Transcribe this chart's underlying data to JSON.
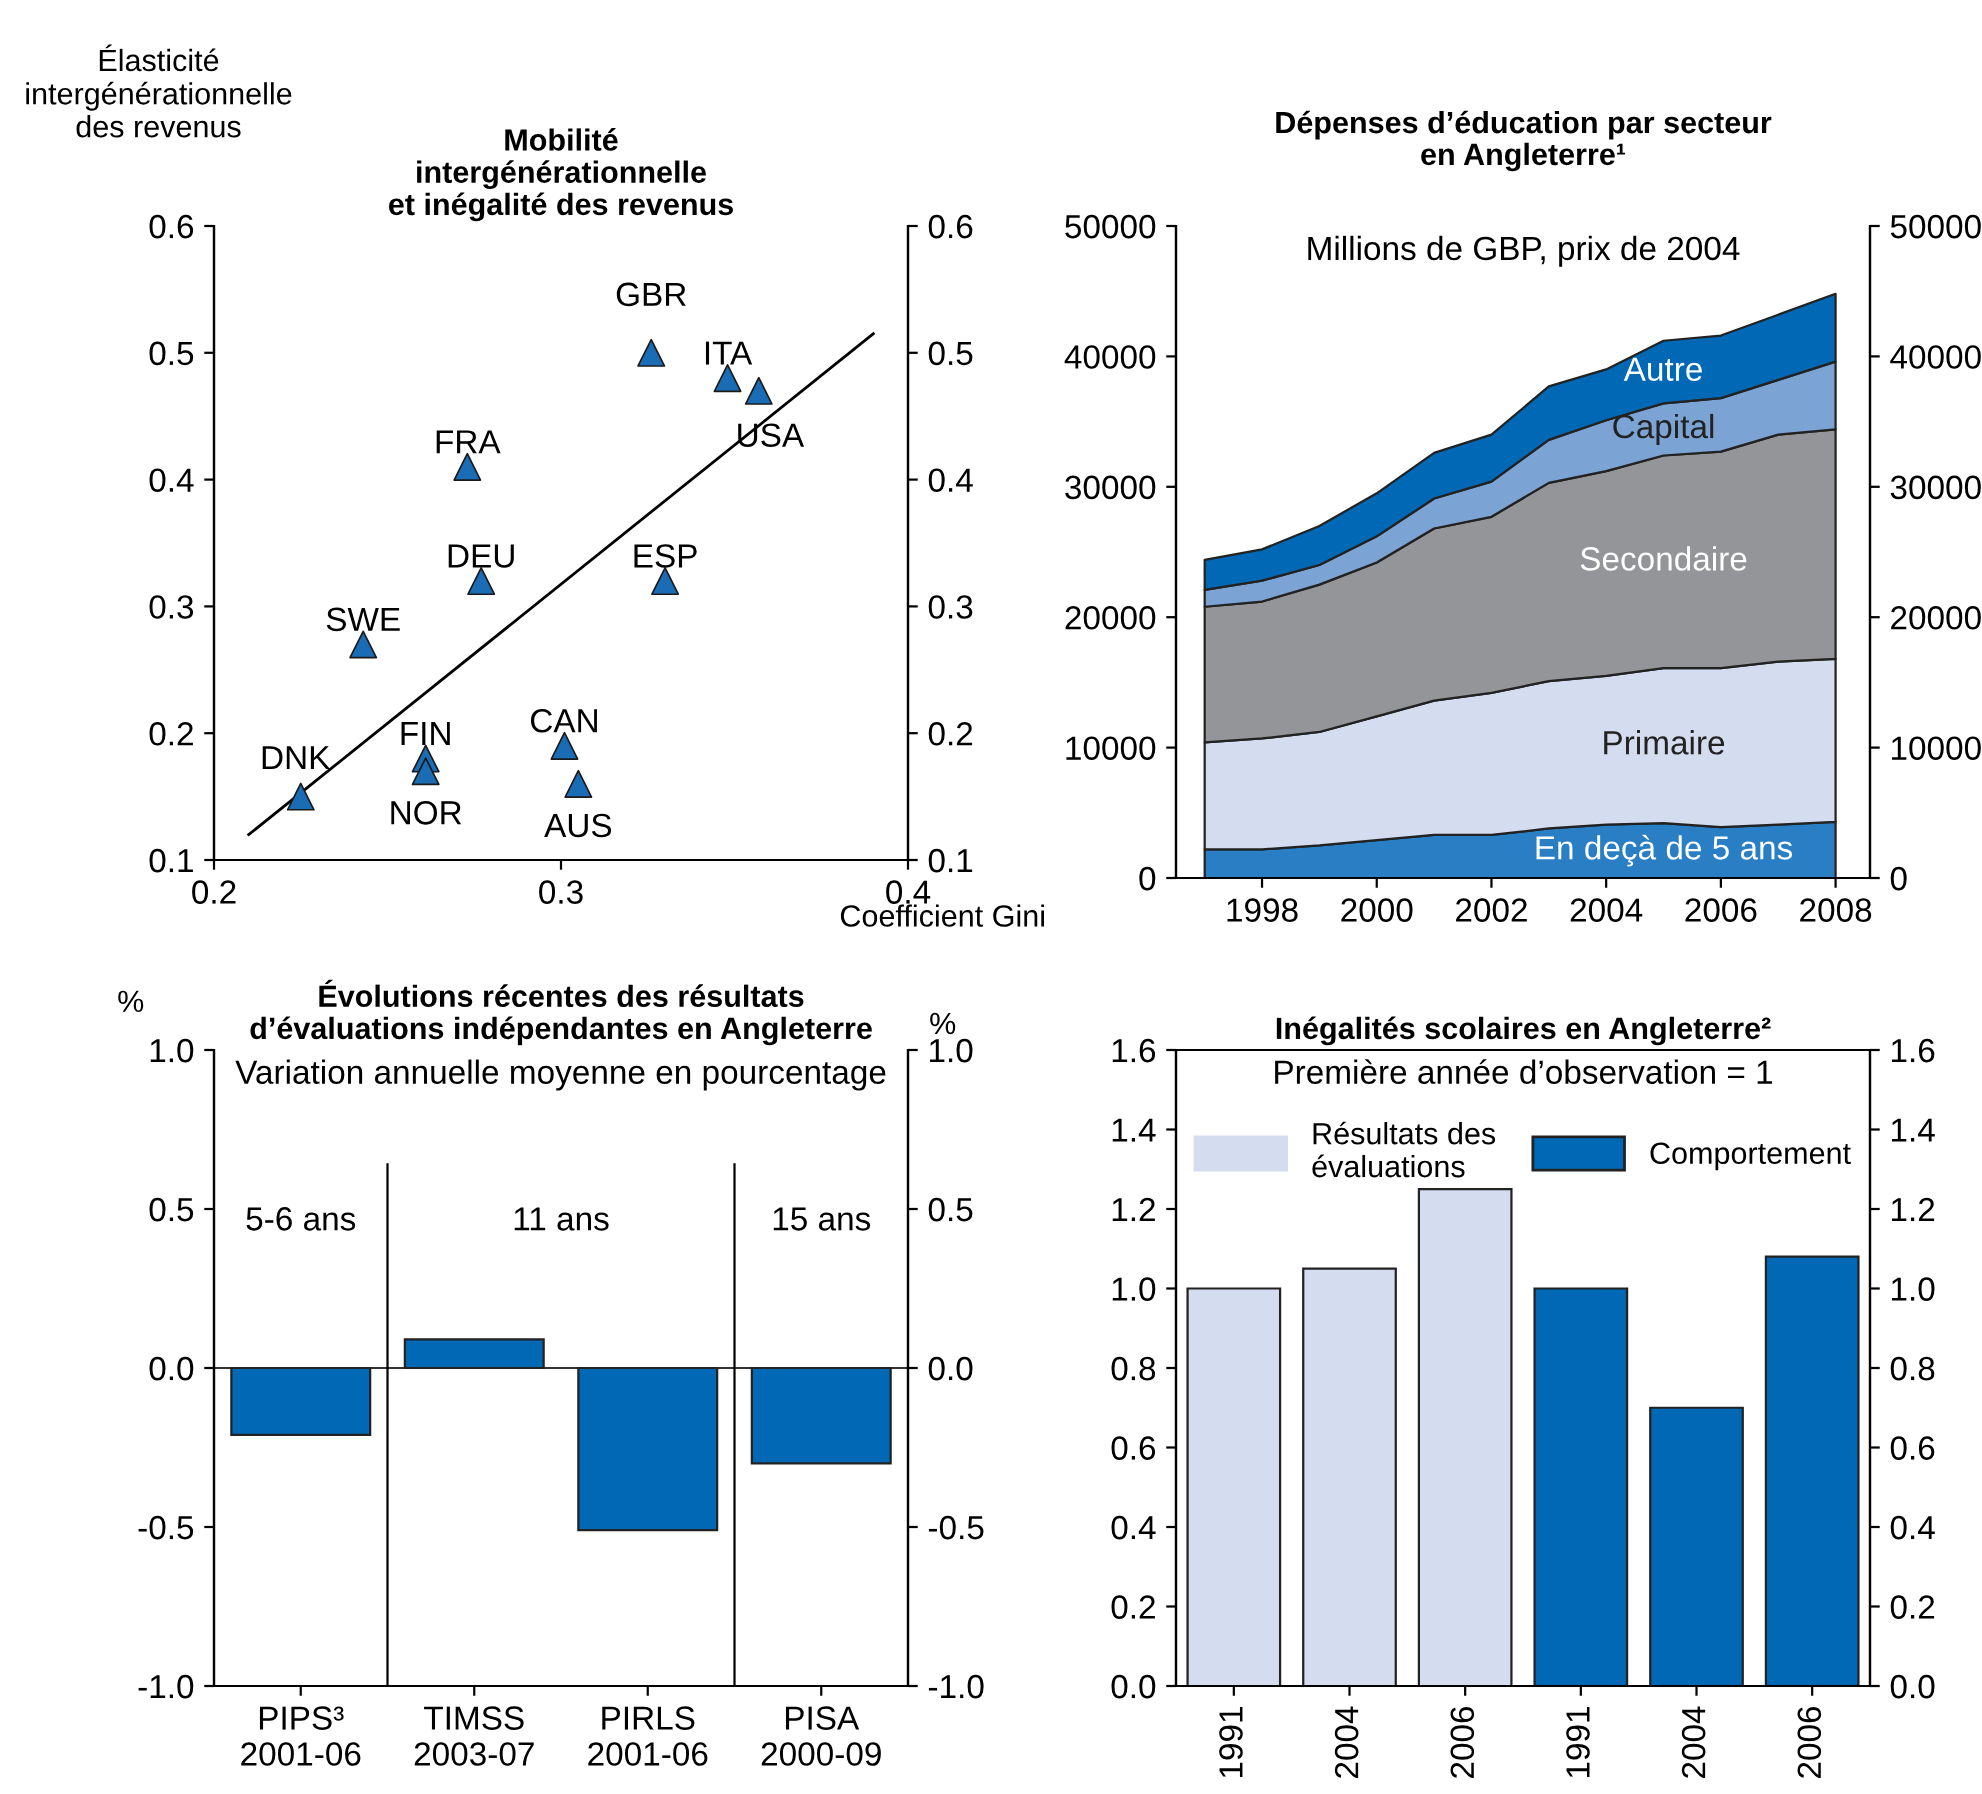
{
  "chart_data": [
    {
      "type": "scatter",
      "title": "Mobilité\nintergénérationnelle\net inégalité des revenus",
      "xlabel": "Coefficient Gini",
      "ylabel": "Élasticité\nintergénérationnelle\ndes revenus",
      "series": [
        {
          "type": "scatter",
          "marker": "triangle",
          "color": "#1a6db5",
          "x": [
            0.225,
            0.261,
            0.261,
            0.243,
            0.273,
            0.277,
            0.301,
            0.305,
            0.33,
            0.326,
            0.348,
            0.357
          ],
          "values": [
            0.15,
            0.18,
            0.17,
            0.27,
            0.41,
            0.32,
            0.19,
            0.16,
            0.32,
            0.5,
            0.48,
            0.47
          ]
        },
        {
          "type": "line",
          "color": "#000000",
          "x": [
            0.21,
            0.39
          ],
          "values": [
            0.12,
            0.515
          ]
        }
      ],
      "annotations": [
        {
          "text": "DNK",
          "x": 0.225,
          "y": 0.15
        },
        {
          "text": "FIN",
          "x": 0.261,
          "y": 0.18
        },
        {
          "text": "NOR",
          "x": 0.261,
          "y": 0.17
        },
        {
          "text": "SWE",
          "x": 0.243,
          "y": 0.27
        },
        {
          "text": "FRA",
          "x": 0.273,
          "y": 0.41
        },
        {
          "text": "DEU",
          "x": 0.277,
          "y": 0.32
        },
        {
          "text": "CAN",
          "x": 0.301,
          "y": 0.19
        },
        {
          "text": "AUS",
          "x": 0.305,
          "y": 0.16
        },
        {
          "text": "ESP",
          "x": 0.33,
          "y": 0.32
        },
        {
          "text": "GBR",
          "x": 0.326,
          "y": 0.5
        },
        {
          "text": "ITA",
          "x": 0.348,
          "y": 0.48
        },
        {
          "text": "USA",
          "x": 0.357,
          "y": 0.47
        }
      ],
      "xlim": [
        0.2,
        0.4
      ],
      "xticks": [
        0.2,
        0.3,
        0.4
      ],
      "ylim": [
        0.1,
        0.6
      ],
      "yticks": [
        0.1,
        0.2,
        0.3,
        0.4,
        0.5,
        0.6
      ],
      "y2lim": [
        0.1,
        0.6
      ],
      "y2ticks": [
        0.1,
        0.2,
        0.3,
        0.4,
        0.5,
        0.6
      ],
      "legend": false,
      "grid": false
    },
    {
      "type": "area",
      "stacked": true,
      "title": "Dépenses d’éducation par secteur\nen Angleterre¹",
      "subtitle": "Millions de GBP, prix de 2004",
      "x": [
        1997,
        1998,
        1999,
        2000,
        2001,
        2002,
        2003,
        2004,
        2005,
        2006,
        2007,
        2008
      ],
      "series": [
        {
          "name": "En deçà de 5 ans",
          "color": "#2a7fc4",
          "values": [
            2200,
            2200,
            2500,
            2900,
            3300,
            3300,
            3800,
            4100,
            4200,
            3900,
            4100,
            4300
          ]
        },
        {
          "name": "Primaire",
          "color": "#d4ddef",
          "values": [
            8200,
            8500,
            8700,
            9500,
            10300,
            10900,
            11300,
            11400,
            11900,
            12200,
            12500,
            12500
          ]
        },
        {
          "name": "Secondaire",
          "color": "#939598",
          "values": [
            10400,
            10500,
            11300,
            11800,
            13200,
            13500,
            15200,
            15700,
            16300,
            16600,
            17400,
            17600
          ]
        },
        {
          "name": "Capital",
          "color": "#7ba3d4",
          "values": [
            1300,
            1600,
            1500,
            2000,
            2300,
            2700,
            3300,
            3900,
            4000,
            4100,
            4200,
            5200
          ]
        },
        {
          "name": "Autre",
          "color": "#0068b4",
          "values": [
            2300,
            2400,
            3000,
            3300,
            3500,
            3600,
            4100,
            3900,
            4800,
            4800,
            5000,
            5200
          ]
        }
      ],
      "xlim": [
        1996.5,
        2008.6
      ],
      "xticks": [
        1998,
        2000,
        2002,
        2004,
        2006,
        2008
      ],
      "ylim": [
        0,
        50000
      ],
      "yticks": [
        0,
        10000,
        20000,
        30000,
        40000,
        50000
      ],
      "y2lim": [
        0,
        50000
      ],
      "y2ticks": [
        0,
        10000,
        20000,
        30000,
        40000,
        50000
      ],
      "legend": false,
      "grid": false
    },
    {
      "type": "bar",
      "title": "Évolutions récentes des résultats\nd’évaluations indépendantes en Angleterre",
      "subtitle": "Variation annuelle moyenne en pourcentage",
      "ylabel": "%",
      "y2label": "%",
      "categories": [
        "PIPS³\n2001-06",
        "TIMSS\n2003-07",
        "PIRLS\n2001-06",
        "PISA\n2000-09"
      ],
      "values": [
        -0.21,
        0.09,
        -0.51,
        -0.3
      ],
      "color": "#0068b4",
      "annotations": [
        "5-6 ans",
        "11 ans",
        "15 ans"
      ],
      "ylim": [
        -1.0,
        1.0
      ],
      "yticks": [
        {
          "value": -1,
          "label": "-1.0"
        },
        -0.5,
        {
          "value": 0,
          "label": "0.0"
        },
        0.5,
        {
          "value": 1,
          "label": "1.0"
        }
      ],
      "y2lim": [
        -1.0,
        1.0
      ],
      "y2ticks": [
        {
          "value": -1,
          "label": "-1.0"
        },
        -0.5,
        {
          "value": 0,
          "label": "0.0"
        },
        0.5,
        {
          "value": 1,
          "label": "1.0"
        }
      ],
      "legend": false,
      "grid": false
    },
    {
      "type": "bar",
      "title": "Inégalités scolaires en Angleterre²",
      "subtitle": "Première année d’observation = 1",
      "categories": [
        "1991",
        "2004",
        "2006",
        "1991",
        "2004",
        "2006"
      ],
      "series": [
        {
          "name": "Résultats des\névaluations",
          "color": "#d4ddef",
          "values": [
            1.0,
            1.05,
            1.25,
            null,
            null,
            null
          ]
        },
        {
          "name": "Comportement",
          "color": "#0068b4",
          "values": [
            null,
            null,
            null,
            1.0,
            0.7,
            1.08
          ]
        }
      ],
      "ylim": [
        0.0,
        1.6
      ],
      "yticks": [
        {
          "value": 0,
          "label": "0.0"
        },
        0.2,
        0.4,
        0.6,
        0.8,
        {
          "value": 1,
          "label": "1.0"
        },
        1.2,
        1.4,
        1.6
      ],
      "y2lim": [
        0.0,
        1.6
      ],
      "y2ticks": [
        {
          "value": 0,
          "label": "0.0"
        },
        0.2,
        0.4,
        0.6,
        0.8,
        {
          "value": 1,
          "label": "1.0"
        },
        1.2,
        1.4,
        1.6
      ],
      "legend": "top",
      "grid": false
    }
  ]
}
